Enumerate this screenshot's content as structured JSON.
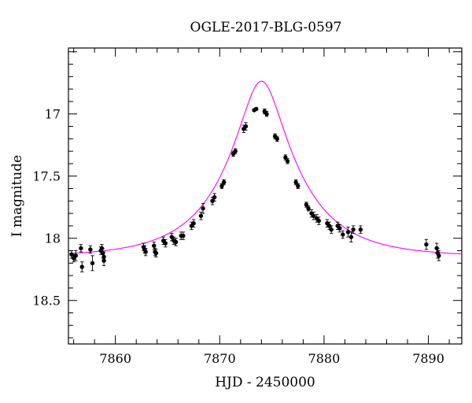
{
  "chart_data": {
    "type": "scatter",
    "title": "OGLE-2017-BLG-0597",
    "xlabel": "HJD - 2450000",
    "ylabel": "I magnitude",
    "xlim": [
      7855.5,
      7893.2
    ],
    "ylim": [
      18.85,
      16.47
    ],
    "y_inverted": true,
    "grid": false,
    "x_ticks": [
      7860,
      7870,
      7880,
      7890
    ],
    "x_tick_labels": [
      "7860",
      "7870",
      "7880",
      "7890"
    ],
    "y_ticks": [
      17,
      17.5,
      18,
      18.5
    ],
    "y_tick_labels": [
      "17",
      "17.5",
      "18",
      "18.5"
    ],
    "colors": {
      "model": "#ff00ff",
      "points": "#000000"
    },
    "model": {
      "t0": 7874.0,
      "u0": 0.28,
      "tE": 7.0,
      "baseline": 18.15,
      "description_shown": false
    },
    "series": [
      {
        "type": "scatter",
        "x": [
          7855.8,
          7856.0,
          7856.2,
          7856.7,
          7856.8,
          7857.6,
          7857.8,
          7858.6,
          7858.7,
          7858.8,
          7858.9,
          7858.9,
          7862.7,
          7862.8,
          7862.9,
          7863.7,
          7863.8,
          7863.9,
          7864.6,
          7864.8,
          7865.4,
          7865.6,
          7865.8,
          7866.3,
          7866.5,
          7867.3,
          7867.5,
          7868.2,
          7868.4,
          7869.3,
          7869.5,
          7870.2,
          7870.4,
          7871.3,
          7871.5,
          7872.3,
          7872.5,
          7873.3,
          7873.5,
          7874.3,
          7874.5,
          7875.3,
          7875.5,
          7876.3,
          7876.5,
          7877.3,
          7877.5,
          7878.3,
          7878.5,
          7878.8,
          7879.0,
          7879.3,
          7879.5,
          7880.3,
          7880.5,
          7880.7,
          7881.3,
          7881.5,
          7881.8,
          7882.3,
          7882.6,
          7882.8,
          7883.5,
          7889.8,
          7890.8,
          7890.9,
          7891.0
        ],
        "y": [
          18.13,
          18.16,
          18.14,
          18.08,
          18.23,
          18.09,
          18.2,
          18.1,
          18.08,
          18.12,
          18.15,
          18.18,
          18.07,
          18.09,
          18.11,
          18.06,
          18.11,
          18.12,
          18.02,
          18.04,
          17.99,
          18.02,
          18.03,
          17.98,
          17.98,
          17.9,
          17.88,
          17.82,
          17.76,
          17.7,
          17.67,
          17.58,
          17.55,
          17.32,
          17.3,
          17.12,
          17.1,
          16.97,
          16.96,
          16.98,
          17.0,
          17.18,
          17.2,
          17.35,
          17.38,
          17.55,
          17.58,
          17.73,
          17.76,
          17.8,
          17.82,
          17.84,
          17.86,
          17.88,
          17.9,
          17.93,
          17.9,
          17.92,
          17.97,
          17.95,
          17.99,
          17.93,
          17.93,
          18.05,
          18.08,
          18.12,
          18.14
        ],
        "err": [
          0.03,
          0.03,
          0.04,
          0.03,
          0.04,
          0.03,
          0.06,
          0.03,
          0.03,
          0.04,
          0.04,
          0.04,
          0.03,
          0.03,
          0.03,
          0.03,
          0.03,
          0.03,
          0.03,
          0.03,
          0.03,
          0.03,
          0.03,
          0.03,
          0.03,
          0.03,
          0.03,
          0.03,
          0.04,
          0.03,
          0.03,
          0.02,
          0.02,
          0.02,
          0.02,
          0.03,
          0.03,
          0.01,
          0.01,
          0.02,
          0.02,
          0.02,
          0.02,
          0.02,
          0.02,
          0.02,
          0.02,
          0.02,
          0.02,
          0.03,
          0.03,
          0.03,
          0.03,
          0.03,
          0.03,
          0.03,
          0.03,
          0.03,
          0.03,
          0.04,
          0.04,
          0.03,
          0.03,
          0.04,
          0.04,
          0.04,
          0.04
        ]
      }
    ]
  }
}
